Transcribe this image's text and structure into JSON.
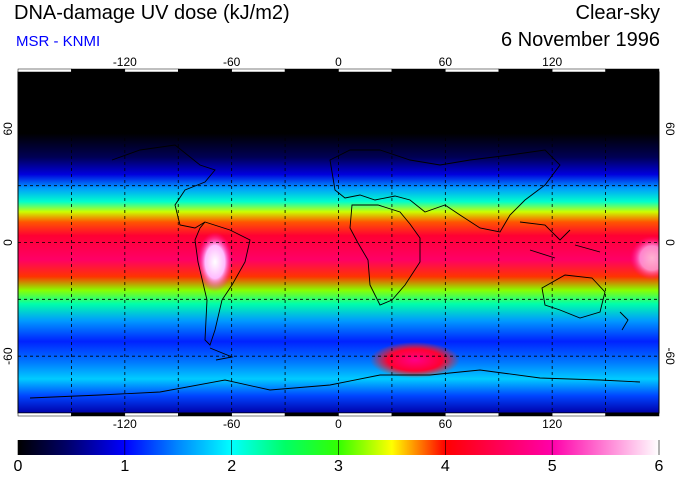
{
  "header": {
    "title": "DNA-damage UV dose (kJ/m2)",
    "source": "MSR - KNMI",
    "condition": "Clear-sky",
    "date": "6 November 1996"
  },
  "colors": {
    "source_text": "#0000ff",
    "background": "#ffffff",
    "line": "#000000"
  },
  "map": {
    "lon_ticks": [
      "-120",
      "-60",
      "0",
      "60",
      "120"
    ],
    "lon_tick_values": [
      -120,
      -60,
      0,
      60,
      120
    ],
    "lat_ticks": [
      "60",
      "0",
      "-60"
    ],
    "lat_tick_values": [
      60,
      0,
      -60
    ],
    "lon_range": [
      -180,
      180
    ],
    "lat_range": [
      -90,
      90
    ],
    "grid_lon": [
      -150,
      -120,
      -90,
      -60,
      -30,
      0,
      30,
      60,
      90,
      120,
      150
    ],
    "grid_lat": [
      -60,
      -30,
      0,
      30,
      60
    ]
  },
  "colorbar": {
    "labels": [
      "0",
      "1",
      "2",
      "3",
      "4",
      "5",
      "6"
    ],
    "min": 0,
    "max": 6,
    "stops": [
      {
        "v": 0.0,
        "c": "#000000"
      },
      {
        "v": 0.45,
        "c": "#000066"
      },
      {
        "v": 1.0,
        "c": "#0000ff"
      },
      {
        "v": 1.5,
        "c": "#0088ff"
      },
      {
        "v": 2.0,
        "c": "#00ffff"
      },
      {
        "v": 2.5,
        "c": "#00ff66"
      },
      {
        "v": 3.0,
        "c": "#33ff00"
      },
      {
        "v": 3.5,
        "c": "#ffff00"
      },
      {
        "v": 4.0,
        "c": "#ff0000"
      },
      {
        "v": 5.0,
        "c": "#ff00aa"
      },
      {
        "v": 6.0,
        "c": "#ffffff"
      }
    ]
  }
}
